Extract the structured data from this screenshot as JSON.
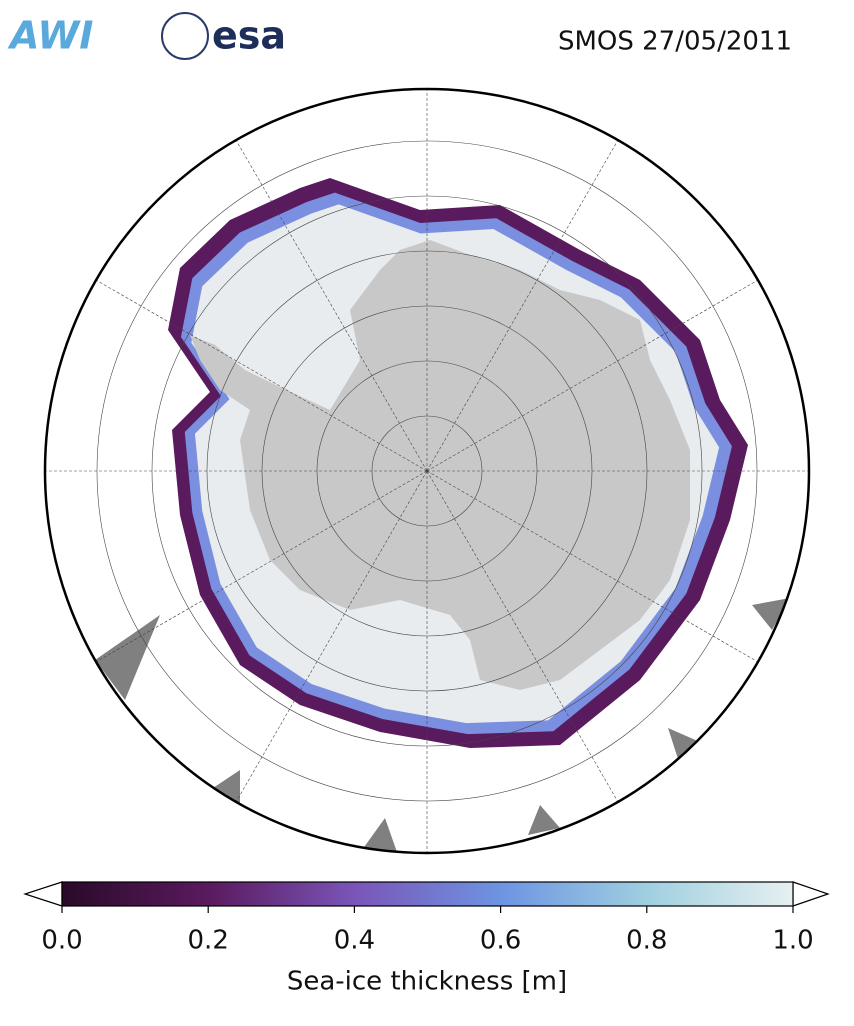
{
  "header": {
    "logos": [
      "AWI",
      "esa"
    ],
    "title": "SMOS 27/05/2011"
  },
  "colorbar": {
    "label": "Sea-ice thickness [m]",
    "lim": [
      0,
      1
    ],
    "ticks": [
      {
        "value": 0,
        "label": "0.0"
      },
      {
        "value": 0.2,
        "label": "0.2"
      },
      {
        "value": 0.4,
        "label": "0.4"
      },
      {
        "value": 0.6,
        "label": "0.6"
      },
      {
        "value": 0.8,
        "label": "0.8"
      },
      {
        "value": 1,
        "label": "1.0"
      }
    ],
    "colormap": [
      "#2a0a28",
      "#5a1a5e",
      "#7a55b8",
      "#6d94e2",
      "#9fcfe0",
      "#e6f0f0"
    ]
  }
}
